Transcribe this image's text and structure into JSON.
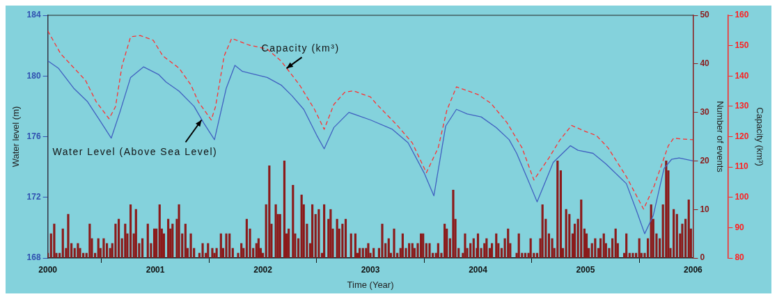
{
  "chart_data": {
    "type": "line",
    "xlabel": "Time (Year)",
    "ylabel": "Water level (m)",
    "y2label": "Capacity (km³)",
    "y3label": "Number of events",
    "xlim": [
      2000,
      2006
    ],
    "xticks": [
      2000,
      2001,
      2002,
      2003,
      2004,
      2005,
      2006
    ],
    "ylim": [
      168,
      184
    ],
    "yticks": [
      168,
      172,
      176,
      180,
      184
    ],
    "y2lim": [
      80,
      160
    ],
    "y2ticks": [
      80,
      90,
      100,
      110,
      120,
      130,
      140,
      150,
      160
    ],
    "y3lim": [
      0,
      50
    ],
    "y3ticks": [
      0,
      10,
      20,
      30,
      40,
      50
    ],
    "grid": false,
    "legend": false,
    "marker": "none",
    "annotations": [
      {
        "text": "Capacity (km³)",
        "x": 2002.22,
        "y": 180.5
      },
      {
        "text": "Water Level (Above Sea Level)",
        "x": 2001.43,
        "y": 177.1
      }
    ],
    "series": [
      {
        "type": "bar",
        "axis": "y3",
        "color": "#8b1a1a",
        "x": [
          2000.0,
          2000.03,
          2000.06,
          2000.08,
          2000.11,
          2000.14,
          2000.17,
          2000.19,
          2000.22,
          2000.25,
          2000.28,
          2000.3,
          2000.33,
          2000.36,
          2000.39,
          2000.41,
          2000.44,
          2000.47,
          2000.49,
          2000.52,
          2000.55,
          2000.58,
          2000.6,
          2000.63,
          2000.66,
          2000.69,
          2000.72,
          2000.74,
          2000.77,
          2000.8,
          2000.82,
          2000.85,
          2000.88,
          2000.93,
          2000.96,
          2000.99,
          2001.01,
          2001.04,
          2001.06,
          2001.08,
          2001.12,
          2001.14,
          2001.16,
          2001.2,
          2001.22,
          2001.25,
          2001.28,
          2001.3,
          2001.33,
          2001.36,
          2001.41,
          2001.44,
          2001.47,
          2001.49,
          2001.53,
          2001.55,
          2001.57,
          2001.61,
          2001.63,
          2001.66,
          2001.69,
          2001.72,
          2001.77,
          2001.8,
          2001.82,
          2001.85,
          2001.88,
          2001.91,
          2001.94,
          2001.96,
          2001.98,
          2002.0,
          2002.03,
          2002.06,
          2002.08,
          2002.12,
          2002.14,
          2002.16,
          2002.2,
          2002.22,
          2002.24,
          2002.28,
          2002.3,
          2002.33,
          2002.36,
          2002.38,
          2002.41,
          2002.44,
          2002.46,
          2002.49,
          2002.52,
          2002.55,
          2002.57,
          2002.61,
          2002.63,
          2002.65,
          2002.69,
          2002.71,
          2002.74,
          2002.77,
          2002.82,
          2002.86,
          2002.88,
          2002.9,
          2002.93,
          2002.96,
          2002.98,
          2003.0,
          2003.03,
          2003.08,
          2003.11,
          2003.14,
          2003.17,
          2003.19,
          2003.22,
          2003.25,
          2003.28,
          2003.3,
          2003.33,
          2003.36,
          2003.39,
          2003.41,
          2003.44,
          2003.47,
          2003.49,
          2003.52,
          2003.55,
          2003.58,
          2003.61,
          2003.63,
          2003.66,
          2003.69,
          2003.71,
          2003.74,
          2003.77,
          2003.79,
          2003.82,
          2003.86,
          2003.88,
          2003.9,
          2003.93,
          2003.96,
          2003.99,
          2004.0,
          2004.03,
          2004.06,
          2004.08,
          2004.11,
          2004.13,
          2004.17,
          2004.19,
          2004.22,
          2004.25,
          2004.28,
          2004.3,
          2004.36,
          2004.38,
          2004.41,
          2004.44,
          2004.47,
          2004.49,
          2004.52,
          2004.55,
          2004.58,
          2004.6,
          2004.63,
          2004.66,
          2004.69,
          2004.71,
          2004.74,
          2004.77,
          2004.79,
          2004.82,
          2004.85,
          2004.88,
          2004.9,
          2004.93,
          2004.96,
          2004.99,
          2005.01,
          2005.03,
          2005.06,
          2005.09,
          2005.12,
          2005.14,
          2005.17,
          2005.19,
          2005.22,
          2005.25,
          2005.28,
          2005.3,
          2005.36,
          2005.38,
          2005.41,
          2005.44,
          2005.47,
          2005.5,
          2005.52,
          2005.55,
          2005.58,
          2005.61,
          2005.63,
          2005.66,
          2005.69,
          2005.72,
          2005.75,
          2005.77,
          2005.79,
          2005.82,
          2005.85,
          2005.88,
          2005.9,
          2005.93,
          2005.96,
          2005.98
        ],
        "values": [
          1,
          5,
          7,
          1,
          1,
          6,
          2,
          9,
          3,
          2,
          3,
          2,
          1,
          1,
          7,
          4,
          1,
          4,
          2,
          4,
          3,
          2,
          3,
          7,
          8,
          4,
          7,
          5,
          11,
          5,
          10,
          3,
          4,
          7,
          3,
          6,
          6,
          11,
          6,
          5,
          8,
          6,
          7,
          8,
          11,
          5,
          7,
          2,
          5,
          2,
          1,
          3,
          1,
          3,
          2,
          1,
          2,
          5,
          2,
          5,
          5,
          2,
          1,
          3,
          2,
          8,
          6,
          2,
          3,
          4,
          2,
          1,
          11,
          19,
          7,
          11,
          9,
          9,
          20,
          5,
          6,
          15,
          5,
          4,
          13,
          11,
          7,
          3,
          11,
          9,
          10,
          1,
          11,
          8,
          10,
          6,
          8,
          6,
          7,
          8,
          5,
          5,
          1,
          2,
          2,
          2,
          3,
          1,
          2,
          2,
          7,
          3,
          4,
          1,
          6,
          1,
          2,
          5,
          2,
          3,
          3,
          2,
          3,
          5,
          5,
          3,
          3,
          1,
          1,
          3,
          1,
          7,
          6,
          4,
          14,
          8,
          2,
          1,
          5,
          2,
          3,
          4,
          2,
          5,
          2,
          3,
          4,
          2,
          3,
          5,
          3,
          2,
          4,
          6,
          3,
          1,
          5,
          1,
          1,
          1,
          4,
          1,
          1,
          4,
          11,
          8,
          5,
          4,
          2,
          20,
          18,
          2,
          10,
          9,
          5,
          7,
          8,
          12,
          6,
          5,
          2,
          3,
          4,
          2,
          4,
          5,
          3,
          2,
          4,
          6,
          3,
          1,
          5,
          1,
          1,
          1,
          4,
          1,
          1,
          4,
          11,
          8,
          5,
          4,
          11,
          20,
          18,
          2,
          10,
          9,
          5,
          7,
          8,
          12,
          6
        ]
      },
      {
        "color": "#4060c0",
        "line_style": "solid",
        "x": [
          2000.0,
          2000.1,
          2000.24,
          2000.37,
          2000.49,
          2000.59,
          2000.67,
          2000.77,
          2000.89,
          2001.03,
          2001.1,
          2001.22,
          2001.36,
          2001.45,
          2001.55,
          2001.66,
          2001.74,
          2001.81,
          2002.04,
          2002.17,
          2002.27,
          2002.38,
          2002.5,
          2002.57,
          2002.66,
          2002.8,
          2003.0,
          2003.2,
          2003.35,
          2003.5,
          2003.59,
          2003.7,
          2003.8,
          2003.9,
          2004.03,
          2004.17,
          2004.29,
          2004.36,
          2004.45,
          2004.55,
          2004.7,
          2004.86,
          2004.93,
          2005.07,
          2005.19,
          2005.38,
          2005.48,
          2005.55,
          2005.63,
          2005.73,
          2005.8,
          2005.87,
          2006.0
        ],
        "values": [
          181.0,
          180.5,
          179.2,
          178.3,
          177.0,
          175.9,
          177.6,
          179.9,
          180.6,
          180.1,
          179.6,
          179.0,
          178.0,
          176.9,
          175.8,
          179.2,
          180.7,
          180.3,
          179.9,
          179.4,
          178.7,
          177.8,
          176.1,
          175.2,
          176.6,
          177.6,
          177.1,
          176.5,
          175.6,
          173.6,
          172.1,
          176.7,
          177.8,
          177.5,
          177.3,
          176.6,
          175.8,
          174.9,
          173.4,
          171.7,
          174.3,
          175.4,
          175.1,
          174.9,
          174.2,
          172.9,
          171.0,
          169.6,
          170.8,
          173.9,
          174.5,
          174.6,
          174.4
        ]
      },
      {
        "color": "#ff3030",
        "line_style": "dashed",
        "axis": "y2",
        "x": [
          2000.0,
          2000.12,
          2000.35,
          2000.45,
          2000.57,
          2000.63,
          2000.69,
          2000.77,
          2000.86,
          2000.98,
          2001.07,
          2001.22,
          2001.33,
          2001.4,
          2001.52,
          2001.56,
          2001.64,
          2001.71,
          2001.87,
          2002.04,
          2002.17,
          2002.34,
          2002.48,
          2002.57,
          2002.66,
          2002.76,
          2002.84,
          2003.0,
          2003.05,
          2003.25,
          2003.39,
          2003.52,
          2003.63,
          2003.71,
          2003.8,
          2004.0,
          2004.12,
          2004.27,
          2004.41,
          2004.52,
          2004.66,
          2004.76,
          2004.87,
          2005.0,
          2005.1,
          2005.21,
          2005.38,
          2005.54,
          2005.64,
          2005.77,
          2005.82,
          2005.91,
          2006.0
        ],
        "values": [
          154.9,
          147.3,
          138.6,
          131.5,
          125.9,
          129.9,
          143.3,
          152.9,
          153.3,
          151.8,
          146.6,
          142.6,
          137.1,
          131.5,
          125.5,
          129.9,
          146.6,
          152.4,
          150.2,
          148.9,
          144.9,
          137.1,
          129.0,
          122.4,
          130.6,
          134.6,
          135.1,
          133.1,
          131.0,
          123.7,
          117.9,
          108.1,
          116.3,
          128.6,
          136.4,
          133.9,
          131.0,
          124.6,
          116.3,
          105.7,
          113.0,
          118.8,
          123.7,
          121.7,
          120.4,
          116.3,
          106.8,
          96.1,
          103.9,
          117.0,
          119.5,
          119.2,
          119.0
        ]
      }
    ]
  }
}
